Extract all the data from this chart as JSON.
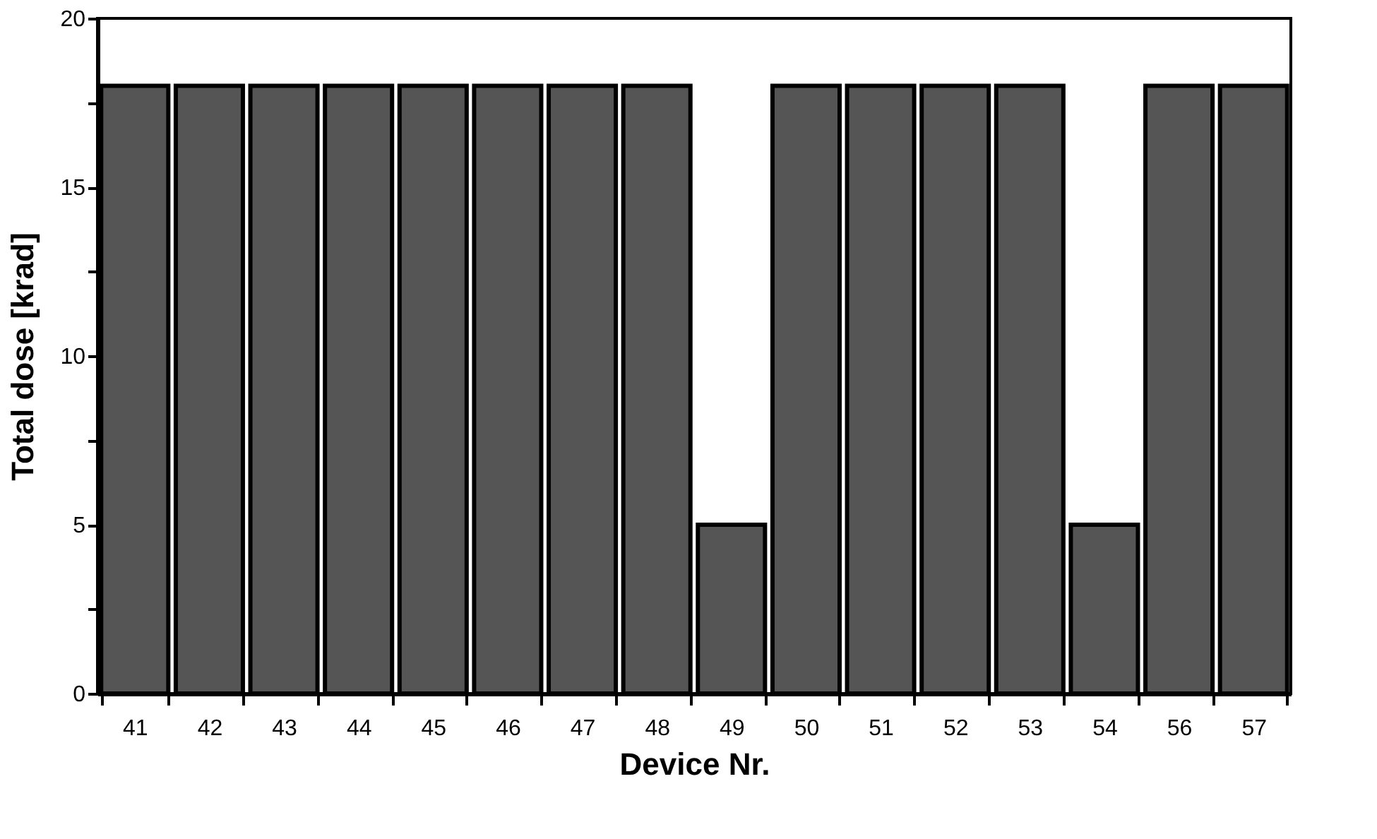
{
  "chart_data": {
    "type": "bar",
    "xlabel": "Device Nr.",
    "ylabel": "Total dose [krad]",
    "categories": [
      "41",
      "42",
      "43",
      "44",
      "45",
      "46",
      "47",
      "48",
      "49",
      "50",
      "51",
      "52",
      "53",
      "54",
      "56",
      "57"
    ],
    "values": [
      18,
      18,
      18,
      18,
      18,
      18,
      18,
      18,
      5,
      18,
      18,
      18,
      18,
      5,
      18,
      18
    ],
    "color": "#555555",
    "ylim": [
      0,
      20
    ],
    "yticks": [
      0,
      {
        "value": 2.5,
        "label": null
      },
      5,
      {
        "value": 7.5,
        "label": null
      },
      10,
      {
        "value": 12.5,
        "label": null
      },
      15,
      {
        "value": 17.5,
        "label": null
      },
      20
    ],
    "grid": false
  }
}
